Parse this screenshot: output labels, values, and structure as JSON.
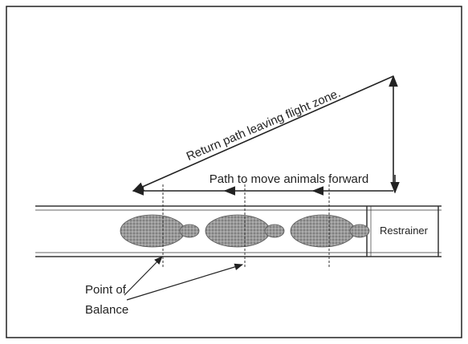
{
  "labels": {
    "return_path": "Return path leaving flight zone.",
    "forward_path": "Path to move animals forward",
    "restrainer": "Restrainer",
    "point_of_balance": [
      "Point of",
      "Balance"
    ]
  }
}
